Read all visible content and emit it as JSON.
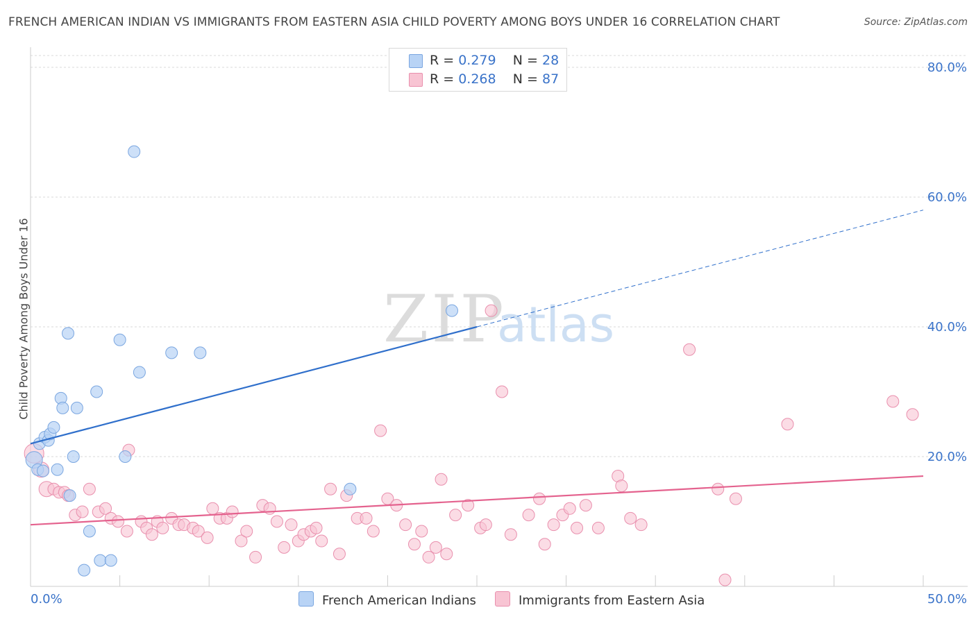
{
  "title": "FRENCH AMERICAN INDIAN VS IMMIGRANTS FROM EASTERN ASIA CHILD POVERTY AMONG BOYS UNDER 16 CORRELATION CHART",
  "source": "Source: ZipAtlas.com",
  "watermark": {
    "zip": "ZIP",
    "atlas": "atlas"
  },
  "legend": {
    "rows": [
      {
        "r_label": "R = ",
        "r_value": "0.279",
        "n_label": "N = ",
        "n_value": "28"
      },
      {
        "r_label": "R = ",
        "r_value": "0.268",
        "n_label": "N = ",
        "n_value": "87"
      }
    ]
  },
  "bottom_legend": [
    "French American Indians",
    "Immigrants from Eastern Asia"
  ],
  "colors": {
    "blue_fill": "#b8d3f5",
    "blue_stroke": "#7aa6e0",
    "blue_line": "#2f6fcb",
    "pink_fill": "#f8c4d3",
    "pink_stroke": "#e98fad",
    "pink_line": "#e4628e",
    "tick_text": "#3a73c9",
    "grid": "#d9d9d9"
  },
  "chart_data": {
    "type": "scatter",
    "title": "FRENCH AMERICAN INDIAN VS IMMIGRANTS FROM EASTERN ASIA CHILD POVERTY AMONG BOYS UNDER 16 CORRELATION CHART",
    "xlabel": "",
    "ylabel": "Child Poverty Among Boys Under 16",
    "xlim": [
      0,
      50
    ],
    "ylim": [
      0,
      80
    ],
    "x_tick_labels": [
      "0.0%",
      "50.0%"
    ],
    "y_tick_labels": [
      "20.0%",
      "40.0%",
      "60.0%",
      "80.0%"
    ],
    "y_ticks": [
      20,
      40,
      60,
      80
    ],
    "series": [
      {
        "name": "French American Indians",
        "r": 0.279,
        "n": 28,
        "points": [
          [
            0.2,
            19.5
          ],
          [
            0.4,
            18.0
          ],
          [
            0.5,
            22.0
          ],
          [
            0.7,
            17.8
          ],
          [
            0.8,
            23.0
          ],
          [
            1.0,
            22.5
          ],
          [
            1.1,
            23.5
          ],
          [
            1.3,
            24.5
          ],
          [
            1.5,
            18.0
          ],
          [
            1.7,
            29.0
          ],
          [
            1.8,
            27.5
          ],
          [
            2.1,
            39.0
          ],
          [
            2.2,
            14.0
          ],
          [
            2.4,
            20.0
          ],
          [
            2.6,
            27.5
          ],
          [
            3.0,
            2.5
          ],
          [
            3.3,
            8.5
          ],
          [
            3.7,
            30.0
          ],
          [
            3.9,
            4.0
          ],
          [
            4.5,
            4.0
          ],
          [
            5.0,
            38.0
          ],
          [
            5.3,
            20.0
          ],
          [
            5.8,
            67.0
          ],
          [
            6.1,
            33.0
          ],
          [
            7.9,
            36.0
          ],
          [
            9.5,
            36.0
          ],
          [
            17.9,
            15.0
          ],
          [
            23.6,
            42.5
          ]
        ],
        "trend": {
          "solid": [
            [
              0,
              22.0
            ],
            [
              25,
              40.0
            ]
          ],
          "dashed": [
            [
              25,
              40.0
            ],
            [
              50,
              58.0
            ]
          ]
        }
      },
      {
        "name": "Immigrants from Eastern Asia",
        "r": 0.268,
        "n": 87,
        "points": [
          [
            0.2,
            20.5
          ],
          [
            0.6,
            18.0
          ],
          [
            0.9,
            15.0
          ],
          [
            1.3,
            15.0
          ],
          [
            1.6,
            14.5
          ],
          [
            1.9,
            14.5
          ],
          [
            2.1,
            14.0
          ],
          [
            2.5,
            11.0
          ],
          [
            2.9,
            11.5
          ],
          [
            3.3,
            15.0
          ],
          [
            3.8,
            11.5
          ],
          [
            4.2,
            12.0
          ],
          [
            4.5,
            10.5
          ],
          [
            4.9,
            10.0
          ],
          [
            5.4,
            8.5
          ],
          [
            5.5,
            21.0
          ],
          [
            6.2,
            10.0
          ],
          [
            6.5,
            9.0
          ],
          [
            6.8,
            8.0
          ],
          [
            7.1,
            10.0
          ],
          [
            7.4,
            9.0
          ],
          [
            7.9,
            10.5
          ],
          [
            8.3,
            9.5
          ],
          [
            8.6,
            9.5
          ],
          [
            9.1,
            9.0
          ],
          [
            9.4,
            8.5
          ],
          [
            9.9,
            7.5
          ],
          [
            10.2,
            12.0
          ],
          [
            10.6,
            10.5
          ],
          [
            11.0,
            10.5
          ],
          [
            11.3,
            11.5
          ],
          [
            11.8,
            7.0
          ],
          [
            12.1,
            8.5
          ],
          [
            12.6,
            4.5
          ],
          [
            13.0,
            12.5
          ],
          [
            13.4,
            12.0
          ],
          [
            13.8,
            10.0
          ],
          [
            14.2,
            6.0
          ],
          [
            14.6,
            9.5
          ],
          [
            15.0,
            7.0
          ],
          [
            15.3,
            8.0
          ],
          [
            15.7,
            8.5
          ],
          [
            16.0,
            9.0
          ],
          [
            16.3,
            7.0
          ],
          [
            16.8,
            15.0
          ],
          [
            17.3,
            5.0
          ],
          [
            17.7,
            14.0
          ],
          [
            18.3,
            10.5
          ],
          [
            18.8,
            10.5
          ],
          [
            19.2,
            8.5
          ],
          [
            19.6,
            24.0
          ],
          [
            20.0,
            13.5
          ],
          [
            20.5,
            12.5
          ],
          [
            21.0,
            9.5
          ],
          [
            21.5,
            6.5
          ],
          [
            21.9,
            8.5
          ],
          [
            22.3,
            4.5
          ],
          [
            22.7,
            6.0
          ],
          [
            23.0,
            16.5
          ],
          [
            23.3,
            5.0
          ],
          [
            23.8,
            11.0
          ],
          [
            24.5,
            12.5
          ],
          [
            25.2,
            9.0
          ],
          [
            25.5,
            9.5
          ],
          [
            25.8,
            42.5
          ],
          [
            26.4,
            30.0
          ],
          [
            26.9,
            8.0
          ],
          [
            27.9,
            11.0
          ],
          [
            28.5,
            13.5
          ],
          [
            28.8,
            6.5
          ],
          [
            29.3,
            9.5
          ],
          [
            29.8,
            11.0
          ],
          [
            30.2,
            12.0
          ],
          [
            30.6,
            9.0
          ],
          [
            31.1,
            12.5
          ],
          [
            31.8,
            9.0
          ],
          [
            32.9,
            17.0
          ],
          [
            33.1,
            15.5
          ],
          [
            33.6,
            10.5
          ],
          [
            34.2,
            9.5
          ],
          [
            36.9,
            36.5
          ],
          [
            38.5,
            15.0
          ],
          [
            38.9,
            1.0
          ],
          [
            39.5,
            13.5
          ],
          [
            42.4,
            25.0
          ],
          [
            48.3,
            28.5
          ],
          [
            49.4,
            26.5
          ]
        ],
        "trend": {
          "solid": [
            [
              0,
              9.5
            ],
            [
              50,
              17.0
            ]
          ]
        }
      }
    ]
  }
}
